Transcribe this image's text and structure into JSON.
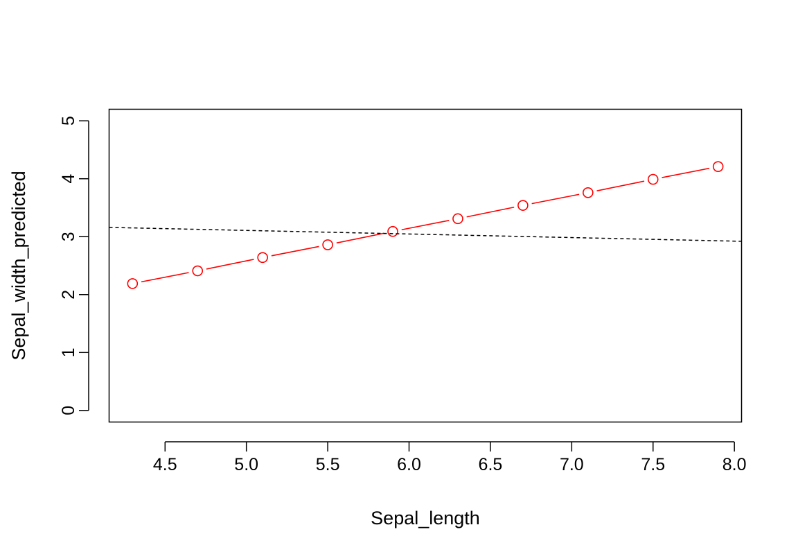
{
  "chart_data": {
    "type": "line",
    "title": "",
    "xlabel": "Sepal_length",
    "ylabel": "Sepal_width_predicted",
    "xlim": [
      4.156,
      8.044
    ],
    "ylim": [
      -0.2,
      5.2
    ],
    "xticks": [
      4.5,
      5.0,
      5.5,
      6.0,
      6.5,
      7.0,
      7.5,
      8.0
    ],
    "xtick_labels": [
      "4.5",
      "5.0",
      "5.5",
      "6.0",
      "6.5",
      "7.0",
      "7.5",
      "8.0"
    ],
    "yticks": [
      0,
      1,
      2,
      3,
      4,
      5
    ],
    "ytick_labels": [
      "0",
      "1",
      "2",
      "3",
      "4",
      "5"
    ],
    "grid": false,
    "series": [
      {
        "style": "line+open-circle-markers",
        "color": "#ff0000",
        "x": [
          4.3,
          4.7,
          5.1,
          5.5,
          5.9,
          6.3,
          6.7,
          7.1,
          7.5,
          7.9
        ],
        "y": [
          2.19,
          2.41,
          2.64,
          2.86,
          3.09,
          3.31,
          3.54,
          3.76,
          3.99,
          4.21
        ]
      },
      {
        "style": "dashed-line",
        "color": "#000000",
        "x": [
          4.156,
          8.044
        ],
        "y": [
          3.16,
          2.92
        ]
      }
    ]
  }
}
